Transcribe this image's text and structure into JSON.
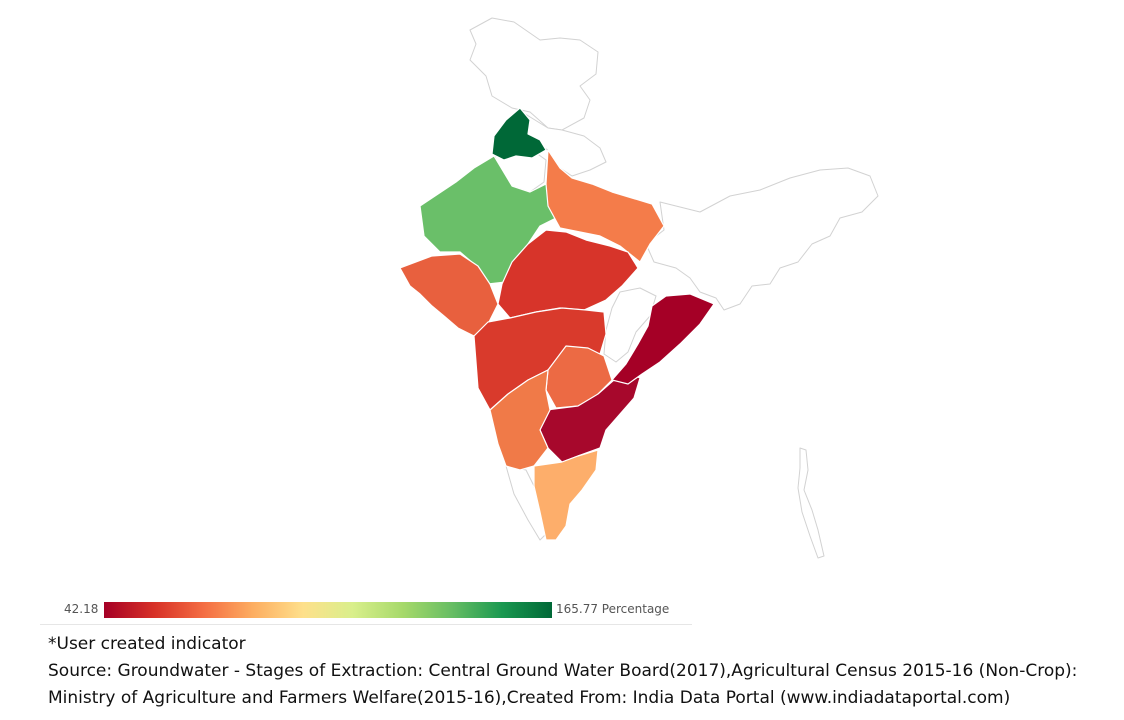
{
  "legend": {
    "min_label": "42.18",
    "max_label": "165.77 Percentage",
    "scale_min": 42.18,
    "scale_max": 165.77,
    "gradient_colors": [
      "#a50026",
      "#d73027",
      "#f46d43",
      "#fdae61",
      "#fee08b",
      "#d9ef8b",
      "#a6d96a",
      "#66bd63",
      "#1a9850",
      "#006837"
    ]
  },
  "states": [
    {
      "name": "Punjab",
      "value": 165.77,
      "color": "#006837"
    },
    {
      "name": "Rajasthan",
      "value": 139.88,
      "color": "#6abf69"
    },
    {
      "name": "Gujarat",
      "value": 63.89,
      "color": "#e8603e"
    },
    {
      "name": "Uttar Pradesh",
      "value": 73.78,
      "color": "#f47c4a"
    },
    {
      "name": "Madhya Pradesh",
      "value": 54.76,
      "color": "#d7342a"
    },
    {
      "name": "Maharashtra",
      "value": 54.62,
      "color": "#d93a2c"
    },
    {
      "name": "Telangana",
      "value": 65.45,
      "color": "#ec6a44"
    },
    {
      "name": "Andhra Pradesh",
      "value": 44.15,
      "color": "#a7082c"
    },
    {
      "name": "Odisha",
      "value": 42.18,
      "color": "#a50026"
    },
    {
      "name": "Karnataka",
      "value": 69.56,
      "color": "#f07a48"
    },
    {
      "name": "Tamil Nadu",
      "value": 80.94,
      "color": "#fdae6b"
    }
  ],
  "footnote": {
    "line1": "*User created indicator",
    "line2": "Source: Groundwater - Stages of Extraction: Central Ground Water Board(2017),Agricultural Census 2015-16 (Non-Crop):",
    "line3": "Ministry of Agriculture and Farmers Welfare(2015-16),Created From: India Data Portal (www.indiadataportal.com)"
  }
}
